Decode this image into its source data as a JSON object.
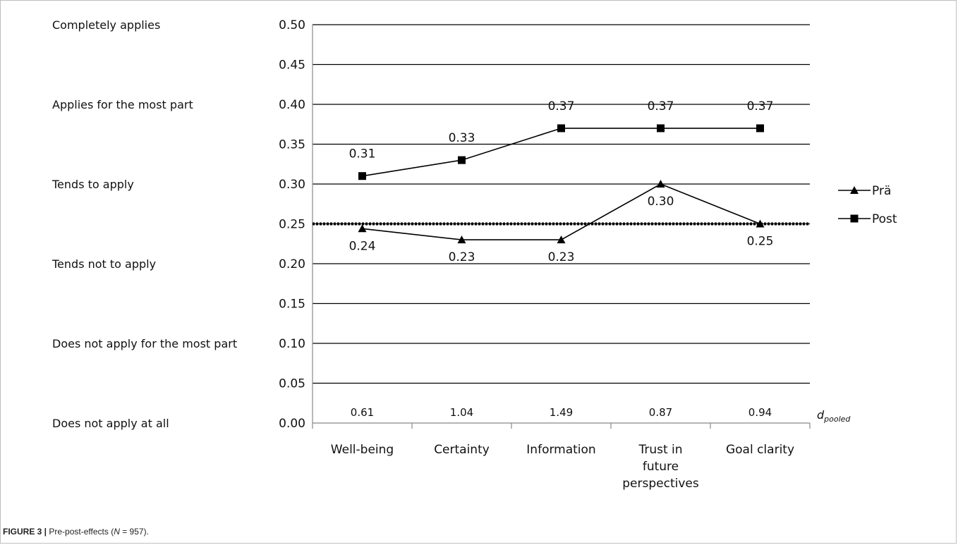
{
  "chart_data": {
    "type": "line",
    "ylim": [
      0,
      0.5
    ],
    "y_ticks": [
      "0.00",
      "0.05",
      "0.10",
      "0.15",
      "0.20",
      "0.25",
      "0.30",
      "0.35",
      "0.40",
      "0.45",
      "0.50"
    ],
    "y_scale_labels": [
      {
        "y": 0.5,
        "text": "Completely applies"
      },
      {
        "y": 0.4,
        "text": "Applies for the most part"
      },
      {
        "y": 0.3,
        "text": "Tends to apply"
      },
      {
        "y": 0.2,
        "text": "Tends not to apply"
      },
      {
        "y": 0.1,
        "text": "Does not apply for the most part"
      },
      {
        "y": 0.0,
        "text": "Does not apply at all"
      }
    ],
    "categories": [
      [
        "Well-being"
      ],
      [
        "Certainty"
      ],
      [
        "Information"
      ],
      [
        "Trust in",
        "future",
        "perspectives"
      ],
      [
        "Goal clarity"
      ]
    ],
    "series": [
      {
        "name": "Prä",
        "marker": "triangle",
        "values": [
          0.244,
          0.23,
          0.23,
          0.3,
          0.25
        ],
        "labels": [
          "0.24",
          "0.23",
          "0.23",
          "0.30",
          "0.25"
        ]
      },
      {
        "name": "Post",
        "marker": "square",
        "values": [
          0.31,
          0.33,
          0.37,
          0.37,
          0.37
        ],
        "labels": [
          "0.31",
          "0.33",
          "0.37",
          "0.37",
          "0.37"
        ]
      }
    ],
    "reference_line": {
      "y": 0.25,
      "style": "dotted"
    },
    "effect_sizes": [
      "0.61",
      "1.04",
      "1.49",
      "0.87",
      "0.94"
    ],
    "effect_label_main": "d",
    "effect_label_sub": "pooled",
    "grid": true,
    "legend_position": "right"
  },
  "caption": {
    "figure": "FIGURE 3 |",
    "text_before": " Pre-post-effects (",
    "n_symbol": "N",
    "text_after": " = 957)."
  }
}
